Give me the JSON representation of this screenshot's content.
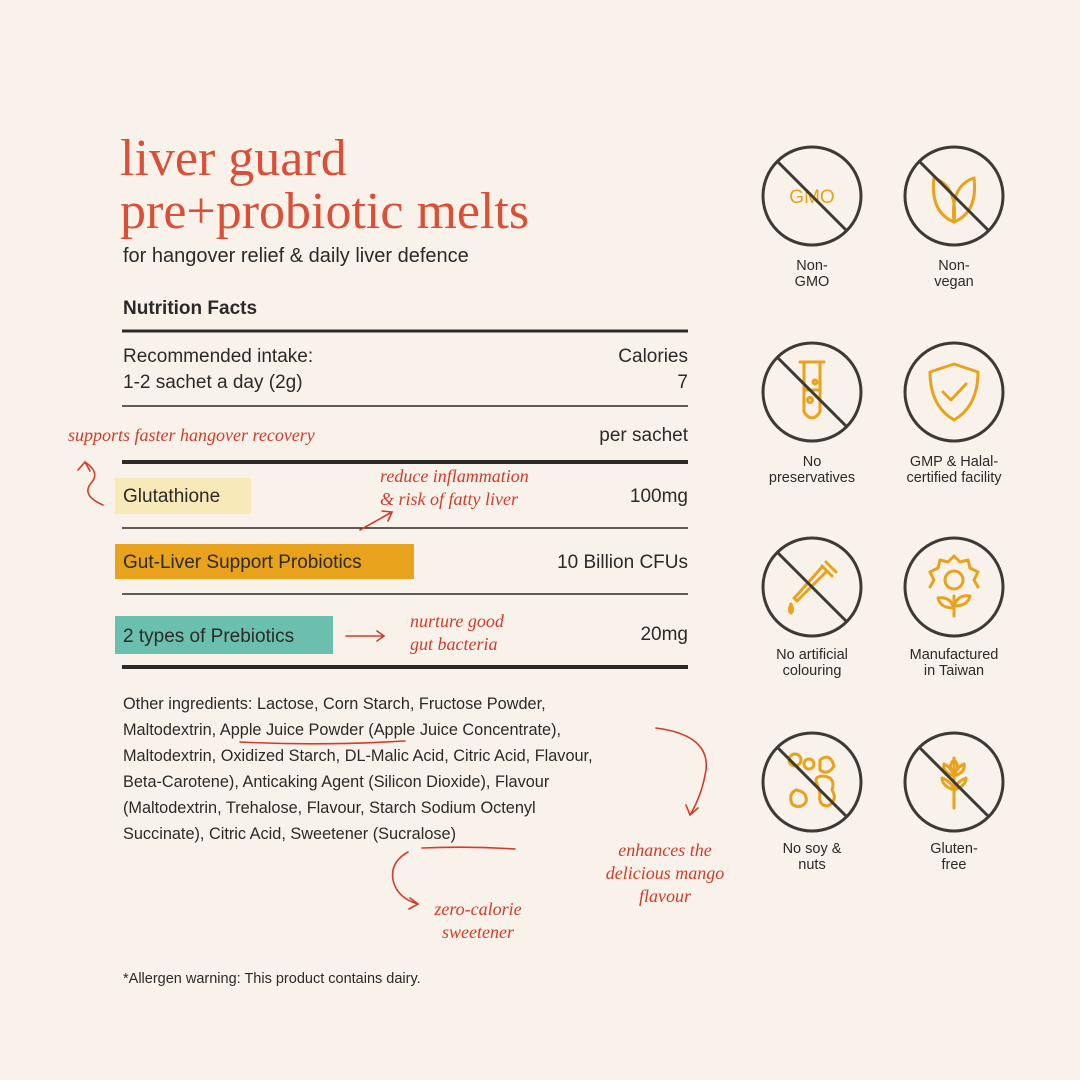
{
  "header": {
    "title_lines": [
      "liver guard",
      "pre+probiotic melts"
    ],
    "subtitle": "for hangover relief & daily liver defence"
  },
  "nutrition": {
    "heading": "Nutrition Facts",
    "intake_label": "Recommended intake:",
    "intake_value": "1-2  sachet a day (2g)",
    "calories_label": "Calories",
    "calories_value": "7",
    "serving": "per sachet",
    "rows": [
      [
        "Glutathione",
        "100mg"
      ],
      [
        "Gut-Liver Support Probiotics",
        "10 Billion CFUs"
      ],
      [
        "2 types of Prebiotics",
        "20mg"
      ]
    ]
  },
  "ingredients": {
    "lines": [
      [
        "Other ingredients: Lactose, Corn Starch, Fructose Powder,"
      ],
      [
        "Maltodextrin, ",
        "Apple Juice Powder",
        " (Apple Juice Concentrate),"
      ],
      [
        "Maltodextrin, Oxidized Starch, DL-Malic Acid, Citric Acid, Flavour,"
      ],
      [
        "Beta-Carotene), Anticaking Agent (Silicon Dioxide), Flavour"
      ],
      [
        "(Maltodextrin, Trehalose, Flavour, Starch Sodium Octenyl"
      ],
      [
        "Succinate), Citric Acid, Sweetener (Sucralose)"
      ]
    ]
  },
  "annotations": {
    "hangover": [
      "supports faster hangover recovery"
    ],
    "inflammation": [
      "reduce inflammation",
      "& risk of fatty liver"
    ],
    "prebiotics": [
      "nurture good",
      "gut bacteria"
    ],
    "apple": [
      "enhances the",
      "delicious mango",
      "flavour"
    ],
    "sucralose": [
      "zero-calorie",
      "sweetener"
    ]
  },
  "allergen": "*Allergen warning: This product contains dairy.",
  "badges": [
    {
      "icon_text": "GMO",
      "label": [
        "Non-",
        "GMO"
      ]
    },
    {
      "label": [
        "Non-",
        "vegan"
      ]
    },
    {
      "label": [
        "No",
        "preservatives"
      ]
    },
    {
      "label": [
        "GMP & Halal-",
        "certified facility"
      ]
    },
    {
      "label": [
        "No artificial",
        "colouring"
      ]
    },
    {
      "label": [
        "Manufactured",
        "in Taiwan"
      ]
    },
    {
      "label": [
        "No soy &",
        "nuts"
      ]
    },
    {
      "label": [
        "Gluten-",
        "free"
      ]
    }
  ]
}
